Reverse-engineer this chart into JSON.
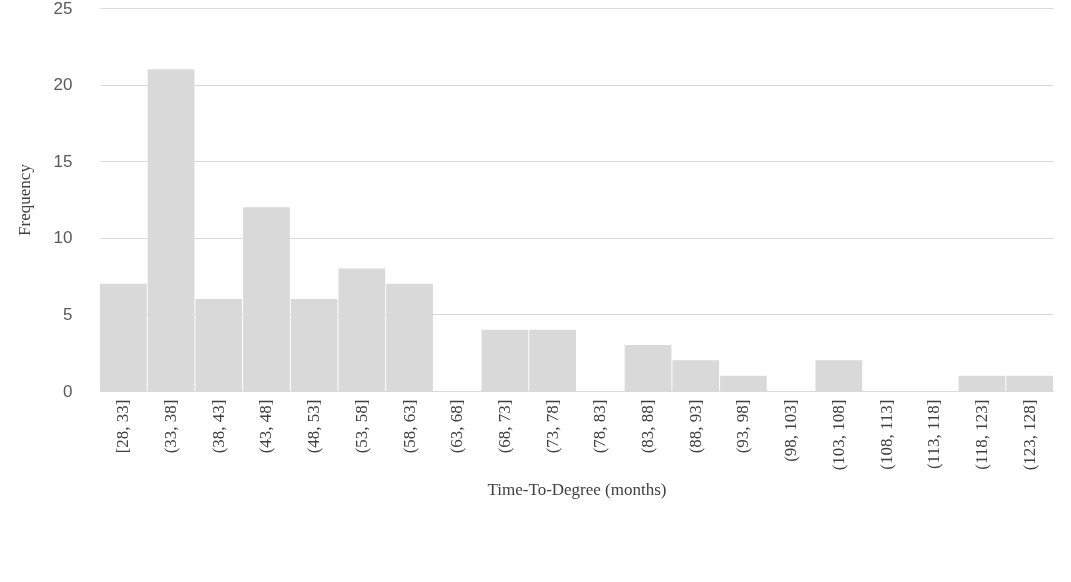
{
  "chart_data": {
    "type": "bar",
    "xlabel": "Time-To-Degree (months)",
    "ylabel": "Frequency",
    "categories": [
      "[28, 33]",
      "(33, 38]",
      "(38, 43]",
      "(43, 48]",
      "(48, 53]",
      "(53, 58]",
      "(58, 63]",
      "(63, 68]",
      "(68, 73]",
      "(73, 78]",
      "(78, 83]",
      "(83, 88]",
      "(88, 93]",
      "(93, 98]",
      "(98, 103]",
      "(103, 108]",
      "(108, 113]",
      "(113, 118]",
      "(118, 123]",
      "(123, 128]"
    ],
    "values": [
      7,
      21,
      6,
      12,
      6,
      8,
      7,
      0,
      4,
      4,
      0,
      3,
      2,
      1,
      0,
      2,
      0,
      0,
      1,
      1
    ],
    "color": "#d9d9d9",
    "ylim": [
      0,
      25
    ],
    "yticks": [
      0,
      5,
      10,
      15,
      20,
      25
    ],
    "grid": "y"
  }
}
